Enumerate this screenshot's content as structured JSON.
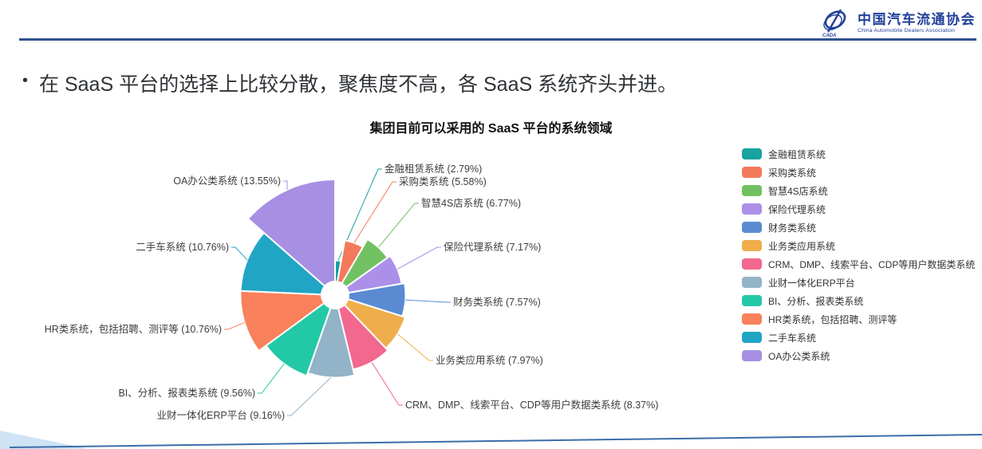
{
  "logo": {
    "org_cn": "中国汽车流通协会",
    "org_en": "China Automobile Dealers Association",
    "acronym": "CADA",
    "brand_color": "#21409a"
  },
  "slide": {
    "bullet_glyph": "•",
    "bullet_text": "在 SaaS 平台的选择上比较分散，聚焦度不高，各 SaaS 系统齐头并进。"
  },
  "chart_data": {
    "type": "pie",
    "subtype": "nightingale-rose",
    "title": "集团目前可以采用的 SaaS 平台的系统领域",
    "unit": "%",
    "legend_position": "right",
    "label_format": "{name} ({value}%)",
    "series": [
      {
        "name": "金融租赁系统",
        "value": "2.79",
        "color": "#18a2a0"
      },
      {
        "name": "采购类系统",
        "value": "5.58",
        "color": "#f4795b"
      },
      {
        "name": "智慧4S店系统",
        "value": "6.77",
        "color": "#71c163"
      },
      {
        "name": "保险代理系统",
        "value": "7.17",
        "color": "#ab8fe9"
      },
      {
        "name": "财务类系统",
        "value": "7.57",
        "color": "#5a8bd2"
      },
      {
        "name": "业务类应用系统",
        "value": "7.97",
        "color": "#f0ad4b"
      },
      {
        "name": "CRM、DMP、线索平台、CDP等用户数据类系统",
        "value": "8.37",
        "color": "#f2688e"
      },
      {
        "name": "业财一体化ERP平台",
        "value": "9.16",
        "color": "#93b3c8"
      },
      {
        "name": "BI、分析、报表类系统",
        "value": "9.56",
        "color": "#23c8a6"
      },
      {
        "name": "HR类系统，包括招聘、测评等",
        "value": "10.76",
        "color": "#f9815c"
      },
      {
        "name": "二手车系统",
        "value": "10.76",
        "color": "#21a5c4"
      },
      {
        "name": "OA办公类系统",
        "value": "13.55",
        "color": "#a78fe4"
      }
    ]
  },
  "decoration": {
    "header_rule_color": "#30518f",
    "footer_line_color": "#3a6ea8",
    "footer_wedge_color": "#cfe3f5"
  }
}
